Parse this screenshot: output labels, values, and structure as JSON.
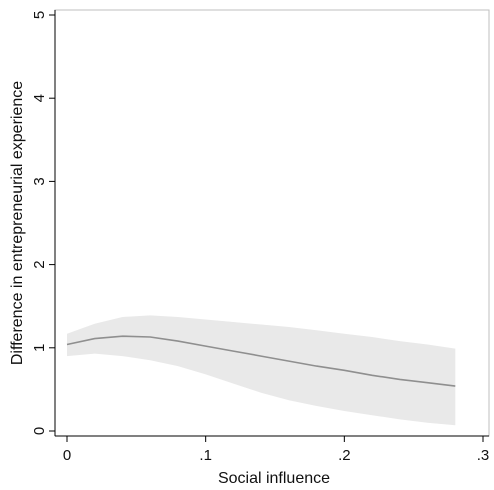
{
  "chart_data": {
    "type": "line",
    "title": "",
    "xlabel": "Social influence",
    "ylabel": "Difference in entrepreneurial experience",
    "xlim": [
      0,
      0.3
    ],
    "ylim": [
      0,
      5
    ],
    "x_ticks": [
      {
        "value": 0,
        "label": "0"
      },
      {
        "value": 0.1,
        "label": ".1"
      },
      {
        "value": 0.2,
        "label": ".2"
      },
      {
        "value": 0.3,
        "label": ".3"
      }
    ],
    "y_ticks": [
      {
        "value": 0,
        "label": "0"
      },
      {
        "value": 1,
        "label": "1"
      },
      {
        "value": 2,
        "label": "2"
      },
      {
        "value": 3,
        "label": "3"
      },
      {
        "value": 4,
        "label": "4"
      },
      {
        "value": 5,
        "label": "5"
      }
    ],
    "grid": false,
    "series": [
      {
        "x": [
          0,
          0.02,
          0.04,
          0.06,
          0.08,
          0.1,
          0.12,
          0.14,
          0.16,
          0.18,
          0.2,
          0.22,
          0.24,
          0.26,
          0.28
        ],
        "y": [
          1.04,
          1.11,
          1.14,
          1.13,
          1.08,
          1.02,
          0.96,
          0.9,
          0.84,
          0.78,
          0.73,
          0.67,
          0.62,
          0.58,
          0.54
        ],
        "ci_lower": [
          0.9,
          0.93,
          0.9,
          0.85,
          0.78,
          0.68,
          0.57,
          0.46,
          0.37,
          0.3,
          0.24,
          0.19,
          0.14,
          0.1,
          0.07
        ],
        "ci_upper": [
          1.17,
          1.29,
          1.37,
          1.39,
          1.37,
          1.34,
          1.31,
          1.28,
          1.25,
          1.21,
          1.17,
          1.13,
          1.08,
          1.04,
          0.99
        ]
      }
    ],
    "colors": {
      "line": "#8f8f8f",
      "band": "#e9e9e9",
      "axis": "#000000",
      "frame": "#bfbfbf"
    }
  }
}
